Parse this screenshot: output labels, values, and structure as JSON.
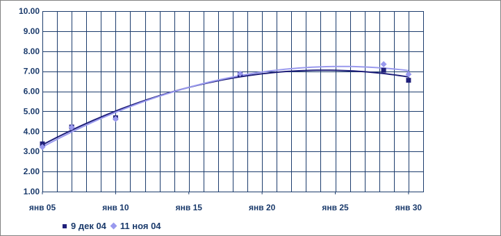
{
  "chart_data": {
    "type": "scatter",
    "x_ticks": [
      {
        "day": 5,
        "label": "янв 05"
      },
      {
        "day": 10,
        "label": "янв 10"
      },
      {
        "day": 15,
        "label": "янв 15"
      },
      {
        "day": 20,
        "label": "янв 20"
      },
      {
        "day": 25,
        "label": "янв 25"
      },
      {
        "day": 30,
        "label": "янв 30"
      }
    ],
    "xlim": [
      5,
      31
    ],
    "ylim": [
      1,
      10
    ],
    "y_ticks": [
      "1.00",
      "2.00",
      "3.00",
      "4.00",
      "5.00",
      "6.00",
      "7.00",
      "8.00",
      "9.00",
      "10.00"
    ],
    "grid": true,
    "legend_position": "bottom-left",
    "series": [
      {
        "name": "9 дек 04",
        "marker": "square",
        "color": "#1f1f7a",
        "x": [
          5,
          7,
          10,
          18.5,
          28.3,
          30
        ],
        "y": [
          3.38,
          4.22,
          4.68,
          6.85,
          7.05,
          6.55
        ],
        "trend": "polynomial-2"
      },
      {
        "name": "11 ноя 04",
        "marker": "diamond",
        "color": "#9999ee",
        "x": [
          5,
          7,
          10,
          18.5,
          28.3,
          30
        ],
        "y": [
          3.22,
          4.2,
          4.62,
          6.88,
          7.35,
          6.85
        ],
        "trend": "polynomial-2"
      }
    ]
  }
}
